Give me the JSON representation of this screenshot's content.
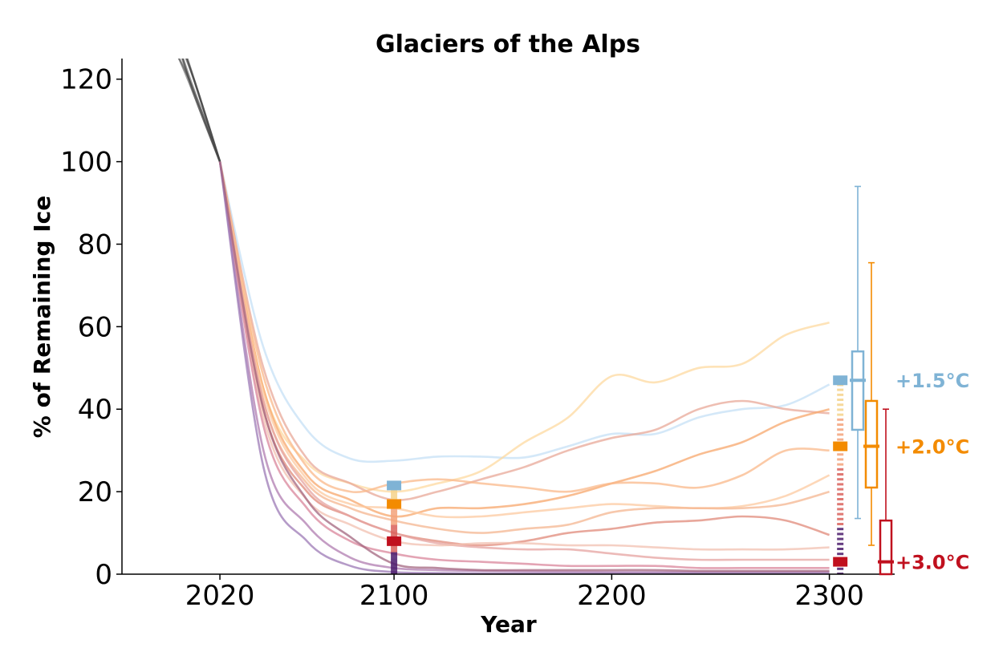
{
  "chart_data": {
    "type": "line",
    "title": "Glaciers of the Alps",
    "xlabel": "Year",
    "ylabel": "% of Remaining Ice",
    "xlim": [
      1975,
      2330
    ],
    "ylim": [
      0,
      125
    ],
    "x_ticks": [
      {
        "value": 2020,
        "label": "2020"
      },
      {
        "value": 2100,
        "label": "2100"
      },
      {
        "value": 2200,
        "label": "2200"
      },
      {
        "value": 2300,
        "label": "2300"
      }
    ],
    "y_ticks": [
      {
        "value": 0,
        "label": "0"
      },
      {
        "value": 20,
        "label": "20"
      },
      {
        "value": 40,
        "label": "40"
      },
      {
        "value": 60,
        "label": "60"
      },
      {
        "value": 80,
        "label": "80"
      },
      {
        "value": 100,
        "label": "100"
      },
      {
        "value": 120,
        "label": "120"
      }
    ],
    "historical_series": [
      {
        "x": [
          1995,
          2005,
          2020
        ],
        "y": [
          140,
          125,
          100
        ]
      },
      {
        "x": [
          1995,
          2005,
          2020
        ],
        "y": [
          138,
          122,
          100
        ]
      },
      {
        "x": [
          1997,
          2008,
          2020
        ],
        "y": [
          135,
          120,
          100
        ]
      },
      {
        "x": [
          1993,
          2005,
          2020
        ],
        "y": [
          132,
          121,
          100
        ]
      },
      {
        "x": [
          1996,
          2007,
          2020
        ],
        "y": [
          137,
          118,
          100
        ]
      },
      {
        "x": [
          1994,
          2006,
          2020
        ],
        "y": [
          134,
          119,
          100
        ]
      }
    ],
    "series": [
      {
        "color": "#c6e0f5",
        "x": [
          2020,
          2040,
          2060,
          2080,
          2100,
          2120,
          2140,
          2160,
          2180,
          2200,
          2220,
          2240,
          2260,
          2280,
          2300
        ],
        "y": [
          100,
          55,
          35,
          28,
          27.5,
          28.5,
          28.5,
          28.3,
          31,
          34,
          34,
          38,
          40,
          41,
          46
        ]
      },
      {
        "color": "#fdd9a0",
        "x": [
          2020,
          2040,
          2060,
          2080,
          2100,
          2120,
          2140,
          2160,
          2180,
          2200,
          2220,
          2240,
          2260,
          2280,
          2300
        ],
        "y": [
          100,
          45,
          27,
          22,
          20,
          22,
          25,
          32,
          38,
          48,
          46.5,
          50,
          51,
          58,
          61
        ]
      },
      {
        "color": "#e8a898",
        "x": [
          2020,
          2040,
          2060,
          2080,
          2100,
          2120,
          2140,
          2160,
          2180,
          2200,
          2220,
          2240,
          2260,
          2280,
          2300
        ],
        "y": [
          100,
          50,
          28,
          22,
          18,
          20,
          23,
          26,
          30,
          33,
          35,
          40,
          42,
          40,
          39
        ]
      },
      {
        "color": "#f7a76c",
        "x": [
          2020,
          2040,
          2060,
          2080,
          2100,
          2120,
          2140,
          2160,
          2180,
          2200,
          2220,
          2240,
          2260,
          2280,
          2300
        ],
        "y": [
          100,
          45,
          24,
          18,
          14,
          16,
          16,
          17,
          19,
          22,
          25,
          29,
          32,
          37,
          40
        ]
      },
      {
        "color": "#fab88a",
        "x": [
          2020,
          2040,
          2060,
          2080,
          2100,
          2120,
          2140,
          2160,
          2180,
          2200,
          2220,
          2240,
          2260,
          2280,
          2300
        ],
        "y": [
          100,
          48,
          26,
          20,
          22,
          23,
          22,
          21,
          20,
          22,
          22,
          21,
          24,
          30,
          30
        ]
      },
      {
        "color": "#fcc9a0",
        "x": [
          2020,
          2040,
          2060,
          2080,
          2100,
          2120,
          2140,
          2160,
          2180,
          2200,
          2220,
          2240,
          2260,
          2280,
          2300
        ],
        "y": [
          100,
          44,
          23,
          17,
          16,
          14,
          14,
          15,
          16,
          17,
          16.5,
          16,
          16.5,
          19,
          24
        ]
      },
      {
        "color": "#f4b590",
        "x": [
          2020,
          2040,
          2060,
          2080,
          2100,
          2120,
          2140,
          2160,
          2180,
          2200,
          2220,
          2240,
          2260,
          2280,
          2300
        ],
        "y": [
          100,
          42,
          22,
          16,
          13,
          11,
          10,
          11,
          12,
          15,
          16,
          16,
          16,
          17,
          20
        ]
      },
      {
        "color": "#e08a7a",
        "x": [
          2020,
          2040,
          2060,
          2080,
          2100,
          2120,
          2140,
          2160,
          2180,
          2200,
          2220,
          2240,
          2260,
          2280,
          2300
        ],
        "y": [
          100,
          40,
          20,
          14,
          10,
          8,
          7,
          8,
          10,
          11,
          12.5,
          13,
          14,
          13,
          9.5
        ]
      },
      {
        "color": "#e6a3a0",
        "x": [
          2020,
          2040,
          2060,
          2080,
          2100,
          2120,
          2140,
          2160,
          2180,
          2200,
          2220,
          2240,
          2260,
          2280,
          2300
        ],
        "y": [
          100,
          42,
          21,
          14,
          10,
          7.5,
          6.5,
          6,
          6,
          5,
          4,
          3.5,
          3.5,
          3.5,
          3.5
        ]
      },
      {
        "color": "#f2c0b0",
        "x": [
          2020,
          2040,
          2060,
          2080,
          2100,
          2120,
          2140,
          2160,
          2180,
          2200,
          2220,
          2240,
          2260,
          2280,
          2300
        ],
        "y": [
          100,
          38,
          18,
          12,
          8,
          7,
          7.5,
          7.5,
          7,
          7,
          6.5,
          6,
          6,
          6,
          6.5
        ]
      },
      {
        "color": "#d9859b",
        "x": [
          2020,
          2040,
          2060,
          2080,
          2100,
          2120,
          2140,
          2160,
          2180,
          2200,
          2220,
          2240,
          2260,
          2280,
          2300
        ],
        "y": [
          100,
          36,
          16,
          8,
          5,
          3.5,
          3,
          2.5,
          2,
          2,
          2,
          1.5,
          1.5,
          1.5,
          1.5
        ]
      },
      {
        "color": "#b07cb0",
        "x": [
          2020,
          2040,
          2060,
          2080,
          2100,
          2120,
          2140,
          2160,
          2180,
          2200,
          2220,
          2240,
          2260,
          2280,
          2300
        ],
        "y": [
          100,
          30,
          12,
          4,
          1.5,
          1,
          0.8,
          0.7,
          0.6,
          0.5,
          0.5,
          0.5,
          0.5,
          0.5,
          0.5
        ]
      },
      {
        "color": "#9c7ab5",
        "x": [
          2020,
          2040,
          2060,
          2080,
          2100,
          2120,
          2140,
          2160,
          2180,
          2200,
          2220,
          2240,
          2260,
          2280,
          2300
        ],
        "y": [
          100,
          26,
          8,
          2,
          0.5,
          0.3,
          0.2,
          0.2,
          0.2,
          0.2,
          0.2,
          0.2,
          0.2,
          0.2,
          0.2
        ]
      },
      {
        "color": "#a3667f",
        "x": [
          2020,
          2040,
          2060,
          2080,
          2100,
          2120,
          2140,
          2160,
          2180,
          2200,
          2220,
          2240,
          2260,
          2280,
          2300
        ],
        "y": [
          100,
          40,
          18,
          9,
          2.5,
          1.5,
          1,
          1,
          1,
          1,
          1,
          0.8,
          0.8,
          0.8,
          0.8
        ]
      }
    ],
    "markers_2100": [
      {
        "scenario": "+1.5°C",
        "y": 21.5,
        "color": "#7fb3d5"
      },
      {
        "scenario": "+2.0°C",
        "y": 17,
        "color": "#f38b00"
      },
      {
        "scenario": "+3.0°C",
        "y": 8,
        "color": "#c0101e"
      }
    ],
    "markers_2300": [
      {
        "scenario": "+1.5°C",
        "y": 47,
        "color": "#7fb3d5"
      },
      {
        "scenario": "+2.0°C",
        "y": 31,
        "color": "#f38b00"
      },
      {
        "scenario": "+3.0°C",
        "y": 3,
        "color": "#c0101e"
      }
    ],
    "boxplots": [
      {
        "name": "+1.5°C",
        "color": "#7fb3d5",
        "whisker_low": 13.5,
        "q1": 35,
        "median": 47,
        "q3": 54,
        "whisker_high": 94
      },
      {
        "name": "+2.0°C",
        "color": "#f38b00",
        "whisker_low": 7,
        "q1": 21,
        "median": 31,
        "q3": 42,
        "whisker_high": 75.5
      },
      {
        "name": "+3.0°C",
        "color": "#c0101e",
        "whisker_low": 0,
        "q1": 0,
        "median": 3,
        "q3": 13,
        "whisker_high": 40
      }
    ],
    "grid": false,
    "legend": "none"
  }
}
